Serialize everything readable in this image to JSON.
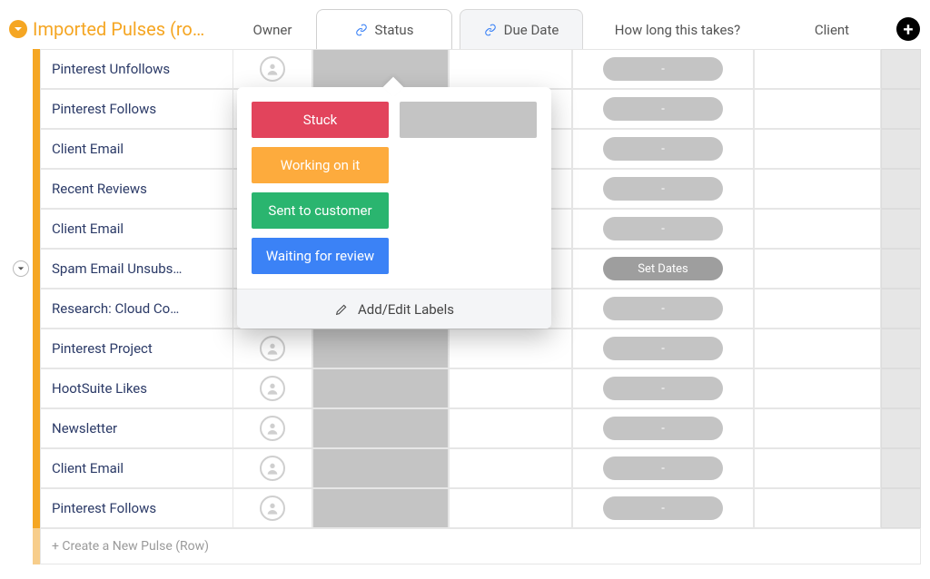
{
  "group": {
    "title": "Imported Pulses (ro…",
    "accent_color": "#f5a623",
    "collapse_expanded": true
  },
  "columns": {
    "owner": {
      "label": "Owner"
    },
    "status": {
      "label": "Status",
      "linked": true,
      "active": true
    },
    "duedate": {
      "label": "Due Date",
      "linked": true
    },
    "howlong": {
      "label": "How long this takes?"
    },
    "client": {
      "label": "Client"
    }
  },
  "rows": [
    {
      "name": "Pinterest Unfollows",
      "howlong": "-"
    },
    {
      "name": "Pinterest Follows",
      "howlong": "-"
    },
    {
      "name": "Client Email",
      "howlong": "-"
    },
    {
      "name": "Recent Reviews",
      "howlong": "-"
    },
    {
      "name": "Client Email",
      "howlong": "-"
    },
    {
      "name": "Spam Email Unsubs…",
      "howlong": "Set Dates",
      "howlong_variant": "dark",
      "expandable": true
    },
    {
      "name": "Research: Cloud Co…",
      "howlong": "-"
    },
    {
      "name": "Pinterest Project",
      "howlong": "-"
    },
    {
      "name": "HootSuite Likes",
      "howlong": "-"
    },
    {
      "name": "Newsletter",
      "howlong": "-"
    },
    {
      "name": "Client Email",
      "howlong": "-"
    },
    {
      "name": "Pinterest Follows",
      "howlong": "-"
    }
  ],
  "create_row": {
    "placeholder": "+ Create a New Pulse (Row)"
  },
  "status_popover": {
    "options": [
      {
        "label": "Stuck",
        "color": "#e2445c"
      },
      {
        "label": "Working on it",
        "color": "#fdab3d"
      },
      {
        "label": "Sent to customer",
        "color": "#2ab56f"
      },
      {
        "label": "Waiting for review",
        "color": "#3b82f6"
      }
    ],
    "blank_color": "#c4c4c4",
    "footer_label": "Add/Edit Labels"
  },
  "colors": {
    "grid_border": "#e6e6e6",
    "pill_bg": "#c4c4c4",
    "pill_dark_bg": "#9e9e9e",
    "status_block_bg": "#c4c4c4",
    "row_name_text": "#2b3a67"
  }
}
